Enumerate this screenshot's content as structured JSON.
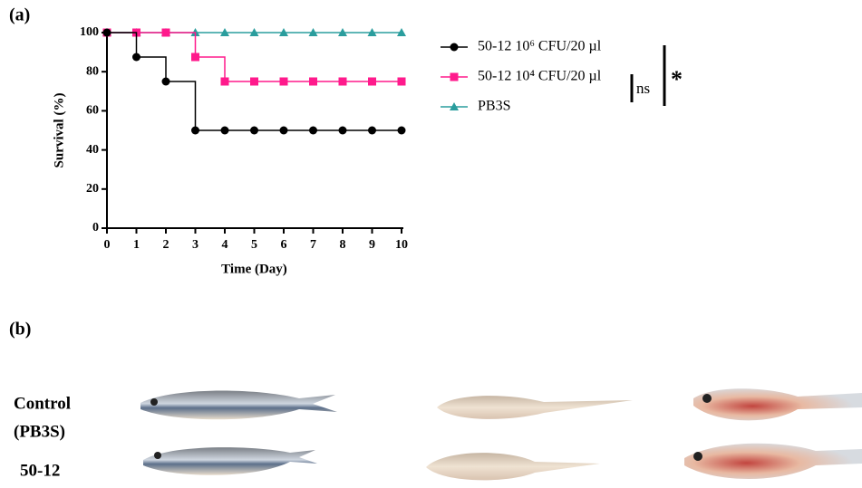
{
  "panel_a_label": "(a)",
  "chart_data": {
    "type": "step",
    "x_label": "Time (Day)",
    "y_label": "Survival (%)",
    "x": [
      0,
      1,
      2,
      3,
      4,
      5,
      6,
      7,
      8,
      9,
      10
    ],
    "xlim": [
      0,
      10
    ],
    "xticks": [
      0,
      1,
      2,
      3,
      4,
      5,
      6,
      7,
      8,
      9,
      10
    ],
    "ylim": [
      0,
      100
    ],
    "yticks": [
      0,
      20,
      40,
      60,
      80,
      100
    ],
    "series": [
      {
        "name": "50-12 10⁶ CFU/20 µl",
        "color": "#000000",
        "marker": "circle",
        "values": [
          100,
          87.5,
          75,
          50,
          50,
          50,
          50,
          50,
          50,
          50,
          50
        ]
      },
      {
        "name": "50-12 10⁴ CFU/20 µl",
        "color": "#ff1a8c",
        "marker": "square",
        "values": [
          100,
          100,
          100,
          87.5,
          75,
          75,
          75,
          75,
          75,
          75,
          75
        ]
      },
      {
        "name": "PB3S",
        "color": "#2a9d9d",
        "marker": "triangle",
        "values": [
          100,
          100,
          100,
          100,
          100,
          100,
          100,
          100,
          100,
          100,
          100
        ]
      }
    ],
    "significance": [
      "ns",
      "*"
    ]
  },
  "panel_b": {
    "label": "(b)",
    "row_labels": [
      "Control",
      "(PB3S)",
      "50-12"
    ]
  }
}
